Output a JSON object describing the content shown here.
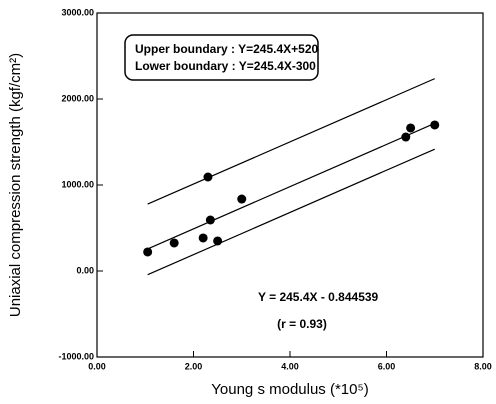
{
  "chart_data": {
    "type": "scatter",
    "x": [
      1.05,
      1.6,
      2.2,
      2.3,
      2.35,
      2.5,
      3.0,
      6.4,
      6.5,
      7.0
    ],
    "values": [
      221,
      326,
      384,
      1093,
      593,
      349,
      837,
      1558,
      1663,
      1698
    ],
    "color": "#000000",
    "xlim": [
      0,
      8
    ],
    "ylim": [
      -1000,
      3000
    ],
    "xticks": [
      {
        "value": 0,
        "label": "0.00"
      },
      {
        "value": 2,
        "label": "2.00"
      },
      {
        "value": 4,
        "label": "4.00"
      },
      {
        "value": 6,
        "label": "6.00"
      },
      {
        "value": 8,
        "label": "8.00"
      }
    ],
    "yticks": [
      {
        "value": -1000,
        "label": "-1000.00"
      },
      {
        "value": 0,
        "label": "0.00"
      },
      {
        "value": 1000,
        "label": "1000.00"
      },
      {
        "value": 2000,
        "label": "2000.00"
      },
      {
        "value": 3000,
        "label": "3000.00"
      }
    ],
    "xlabel": "Young s modulus (*10⁵)",
    "ylabel": "Uniaxial compression strength (kgf/cm²)",
    "lines": [
      {
        "x": [
          1.05,
          7.0
        ],
        "values": [
          778,
          2237
        ]
      },
      {
        "x": [
          1.05,
          7.0
        ],
        "values": [
          257,
          1717
        ]
      },
      {
        "x": [
          1.05,
          7.0
        ],
        "values": [
          -43,
          1417
        ]
      }
    ],
    "annotations": [
      "Upper boundary : Y=245.4X+520",
      "Lower boundary : Y=245.4X-300",
      "Y = 245.4X - 0.844539",
      "(r = 0.93)"
    ]
  }
}
